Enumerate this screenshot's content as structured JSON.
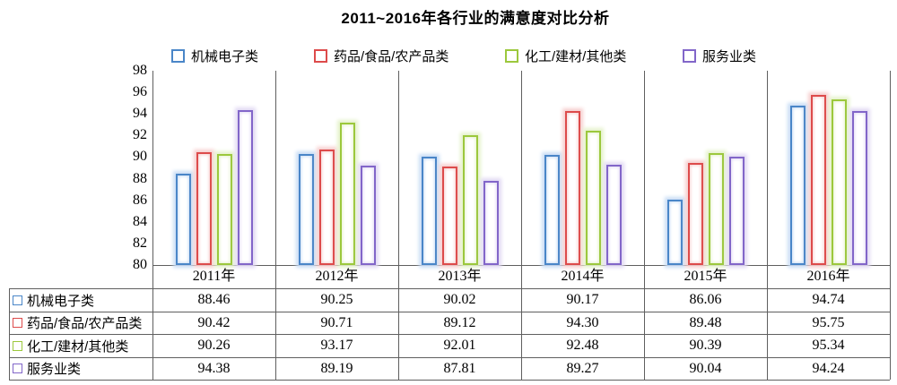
{
  "title": "2011~2016年各行业的满意度对比分析",
  "chart_data": {
    "type": "bar",
    "title": "2011~2016年各行业的满意度对比分析",
    "categories": [
      "2011年",
      "2012年",
      "2013年",
      "2014年",
      "2015年",
      "2016年"
    ],
    "series": [
      {
        "name": "机械电子类",
        "color": "#4a86c8",
        "halo": "#c9ddf5",
        "values": [
          88.46,
          90.25,
          90.02,
          90.17,
          86.06,
          94.74
        ]
      },
      {
        "name": "药品/食品/农产品类",
        "color": "#dd4b4b",
        "halo": "#f6cfcf",
        "values": [
          90.42,
          90.71,
          89.12,
          94.3,
          89.48,
          95.75
        ]
      },
      {
        "name": "化工/建材/其他类",
        "color": "#9cc83d",
        "halo": "#e5f2cc",
        "values": [
          90.26,
          93.17,
          92.01,
          92.48,
          90.39,
          95.34
        ]
      },
      {
        "name": "服务业类",
        "color": "#8266c9",
        "halo": "#e2daf4",
        "values": [
          94.38,
          89.19,
          87.81,
          89.27,
          90.04,
          94.24
        ]
      }
    ],
    "ylim": [
      80,
      98
    ],
    "ytick_step": 2,
    "xlabel": "",
    "ylabel": "",
    "grid": "vertical-category-separators-only",
    "legend_position": "top",
    "data_table_attached": true,
    "value_format": "0.00",
    "bar_style": "white-fill-colored-outline-with-soft-glow",
    "line_color": "#5f5f5f"
  }
}
